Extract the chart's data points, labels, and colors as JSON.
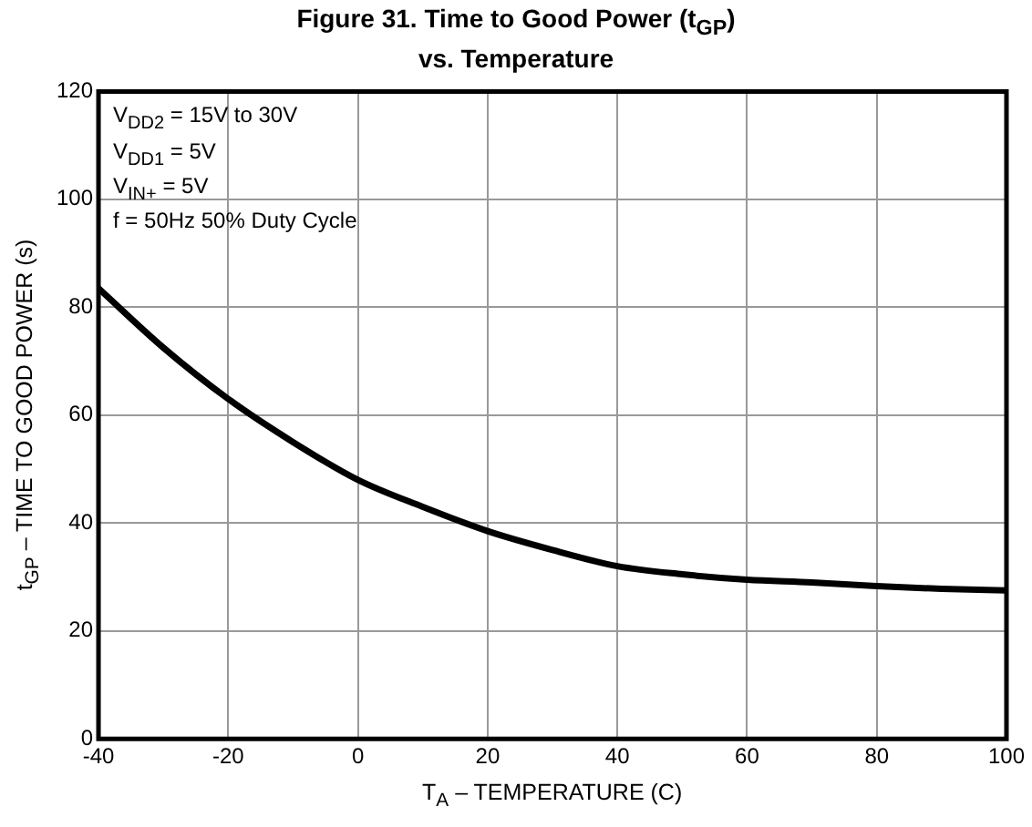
{
  "chart_data": {
    "type": "line",
    "title": "Figure 31. Time to Good Power (t$_{GP}$)\nvs. Temperature",
    "xlabel": "T$_{A}$ – TEMPERATURE (C)",
    "ylabel": "t$_{GP}$ – TIME TO GOOD POWER (s)",
    "x": [
      -40,
      -30,
      -20,
      -10,
      0,
      10,
      20,
      30,
      40,
      50,
      60,
      70,
      80,
      90,
      100
    ],
    "series": [
      {
        "color": "#000000",
        "values": [
          83.5,
          72.5,
          63,
          55,
          48,
          43,
          38.5,
          35,
          32,
          30.5,
          29.5,
          29,
          28.3,
          27.8,
          27.5
        ]
      }
    ],
    "xlim": [
      -40,
      100
    ],
    "xticks": [
      -40,
      -20,
      0,
      20,
      40,
      60,
      80,
      100
    ],
    "ylim": [
      0,
      120
    ],
    "yticks": [
      0,
      20,
      40,
      60,
      80,
      100,
      120
    ],
    "grid": true,
    "legend": false,
    "marker": "none",
    "line_style": "solid",
    "annotations": [
      "V$_{DD2}$ = 15V to 30V",
      "V$_{DD1}$ = 5V",
      "V$_{IN+}$ = 5V",
      "f = 50Hz 50% Duty Cycle"
    ]
  }
}
